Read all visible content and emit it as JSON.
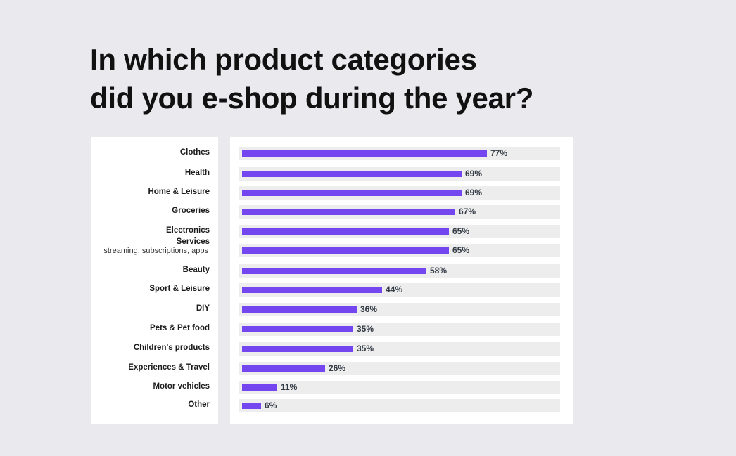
{
  "title_lines": [
    "In which product categories",
    "did you e-shop during the year?"
  ],
  "chart_data": {
    "type": "bar",
    "orientation": "horizontal",
    "title": "In which product categories did you e-shop during the year?",
    "unit": "%",
    "xlim": [
      0,
      100
    ],
    "grid": false,
    "colors": {
      "bar": "#7446ef",
      "track": "#ededed",
      "panel": "#ffffff",
      "background": "#e9e9ee"
    },
    "categories": [
      "Clothes",
      "Health",
      "Home & Leisure",
      "Groceries",
      "Electronics",
      "Services",
      "Beauty",
      "Sport & Leisure",
      "DIY",
      "Pets & Pet food",
      "Children's products",
      "Experiences & Travel",
      "Motor vehicles",
      "Other"
    ],
    "sublabels": [
      "",
      "",
      "",
      "",
      "",
      "streaming, subscriptions, apps",
      "",
      "",
      "",
      "",
      "",
      "",
      "",
      ""
    ],
    "values": [
      77,
      69,
      69,
      67,
      65,
      65,
      58,
      44,
      36,
      35,
      35,
      26,
      11,
      6
    ],
    "value_labels": [
      "77%",
      "69%",
      "69%",
      "67%",
      "65%",
      "65%",
      "58%",
      "44%",
      "36%",
      "35%",
      "35%",
      "26%",
      "11%",
      "6%"
    ]
  }
}
